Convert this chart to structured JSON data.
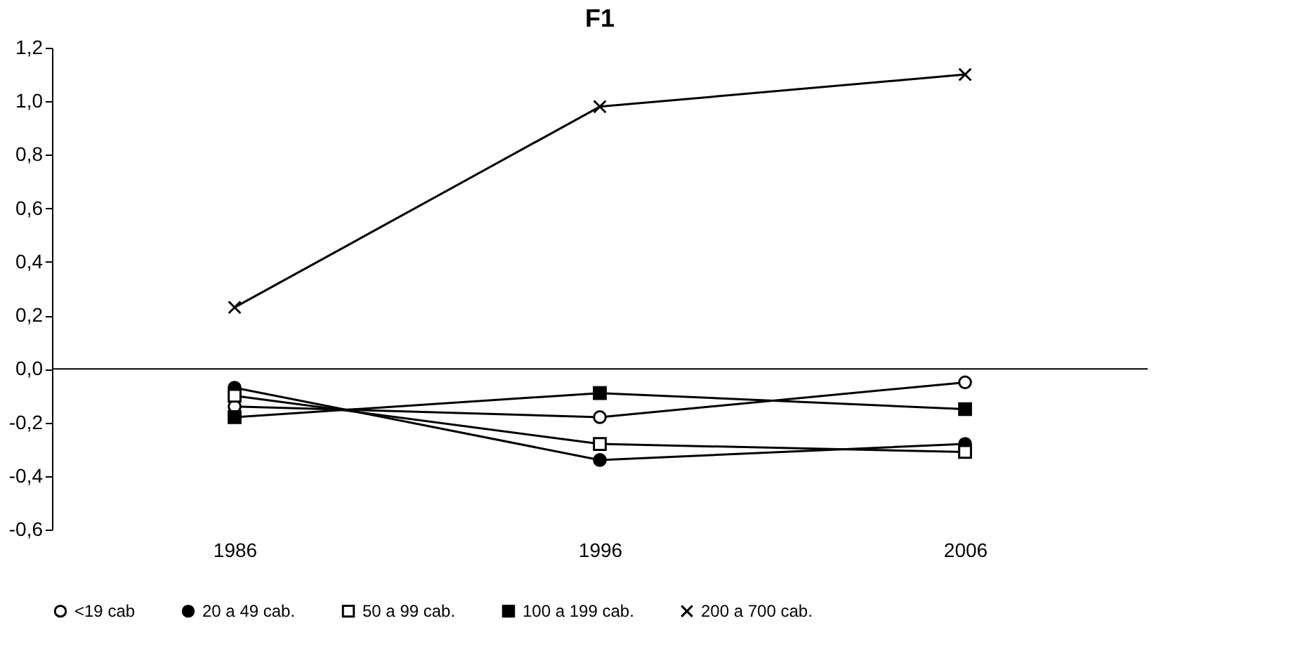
{
  "chart_data": {
    "type": "line",
    "title": "F1",
    "categories": [
      "1986",
      "1996",
      "2006"
    ],
    "series": [
      {
        "name": "<19 cab",
        "color": "#000000",
        "marker": "circle_open",
        "values": [
          -0.14,
          -0.18,
          -0.05
        ]
      },
      {
        "name": "20 a 49 cab.",
        "color": "#000000",
        "marker": "circle",
        "values": [
          -0.07,
          -0.34,
          -0.28
        ]
      },
      {
        "name": "50 a 99 cab.",
        "color": "#000000",
        "marker": "square_open",
        "values": [
          -0.1,
          -0.28,
          -0.31
        ]
      },
      {
        "name": "100 a 199 cab.",
        "color": "#000000",
        "marker": "square",
        "values": [
          -0.18,
          -0.09,
          -0.15
        ]
      },
      {
        "name": "200 a 700 cab.",
        "color": "#000000",
        "marker": "cross",
        "values": [
          0.23,
          0.98,
          1.1
        ]
      }
    ],
    "ylim": [
      -0.6,
      1.2
    ],
    "yticks": [
      {
        "value": -0.6,
        "label": "-0,6"
      },
      {
        "value": -0.4,
        "label": "-0,4"
      },
      {
        "value": -0.2,
        "label": "-0,2"
      },
      {
        "value": 0,
        "label": "0,0"
      },
      {
        "value": 0.2,
        "label": "0,2"
      },
      {
        "value": 0.4,
        "label": "0,4"
      },
      {
        "value": 0.6,
        "label": "0,6"
      },
      {
        "value": 0.8,
        "label": "0,8"
      },
      {
        "value": 1.0,
        "label": "1,0"
      },
      {
        "value": 1.2,
        "label": "1,2"
      }
    ],
    "ref_lines": [
      {
        "axis": "y",
        "value": 0,
        "label": null
      }
    ],
    "grid": false,
    "legend": "bottom",
    "line_style": "solid"
  }
}
